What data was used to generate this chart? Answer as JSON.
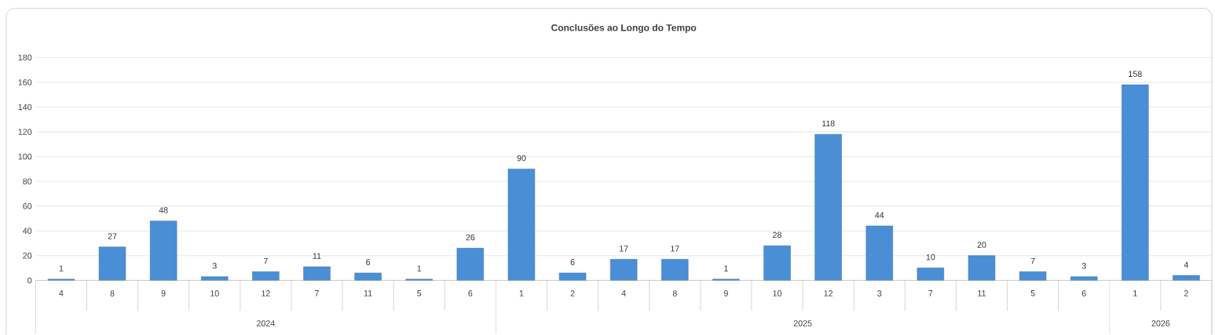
{
  "chart_data": {
    "type": "bar",
    "title": "Conclusões ao Longo do Tempo",
    "categories": [
      "4",
      "8",
      "9",
      "10",
      "12",
      "7",
      "11",
      "5",
      "6",
      "1",
      "2",
      "4",
      "8",
      "9",
      "10",
      "12",
      "3",
      "7",
      "11",
      "5",
      "6",
      "1",
      "2"
    ],
    "values": [
      1,
      27,
      48,
      3,
      7,
      11,
      6,
      1,
      26,
      90,
      6,
      17,
      17,
      1,
      28,
      118,
      44,
      10,
      20,
      7,
      3,
      158,
      4
    ],
    "color": "#4a8fd6",
    "ylim": [
      0,
      180
    ],
    "yticks": [
      0,
      20,
      40,
      60,
      80,
      100,
      120,
      140,
      160,
      180
    ],
    "grid": "y",
    "data_labels": true,
    "annotations": [
      "2024",
      "2025",
      "2026"
    ]
  }
}
